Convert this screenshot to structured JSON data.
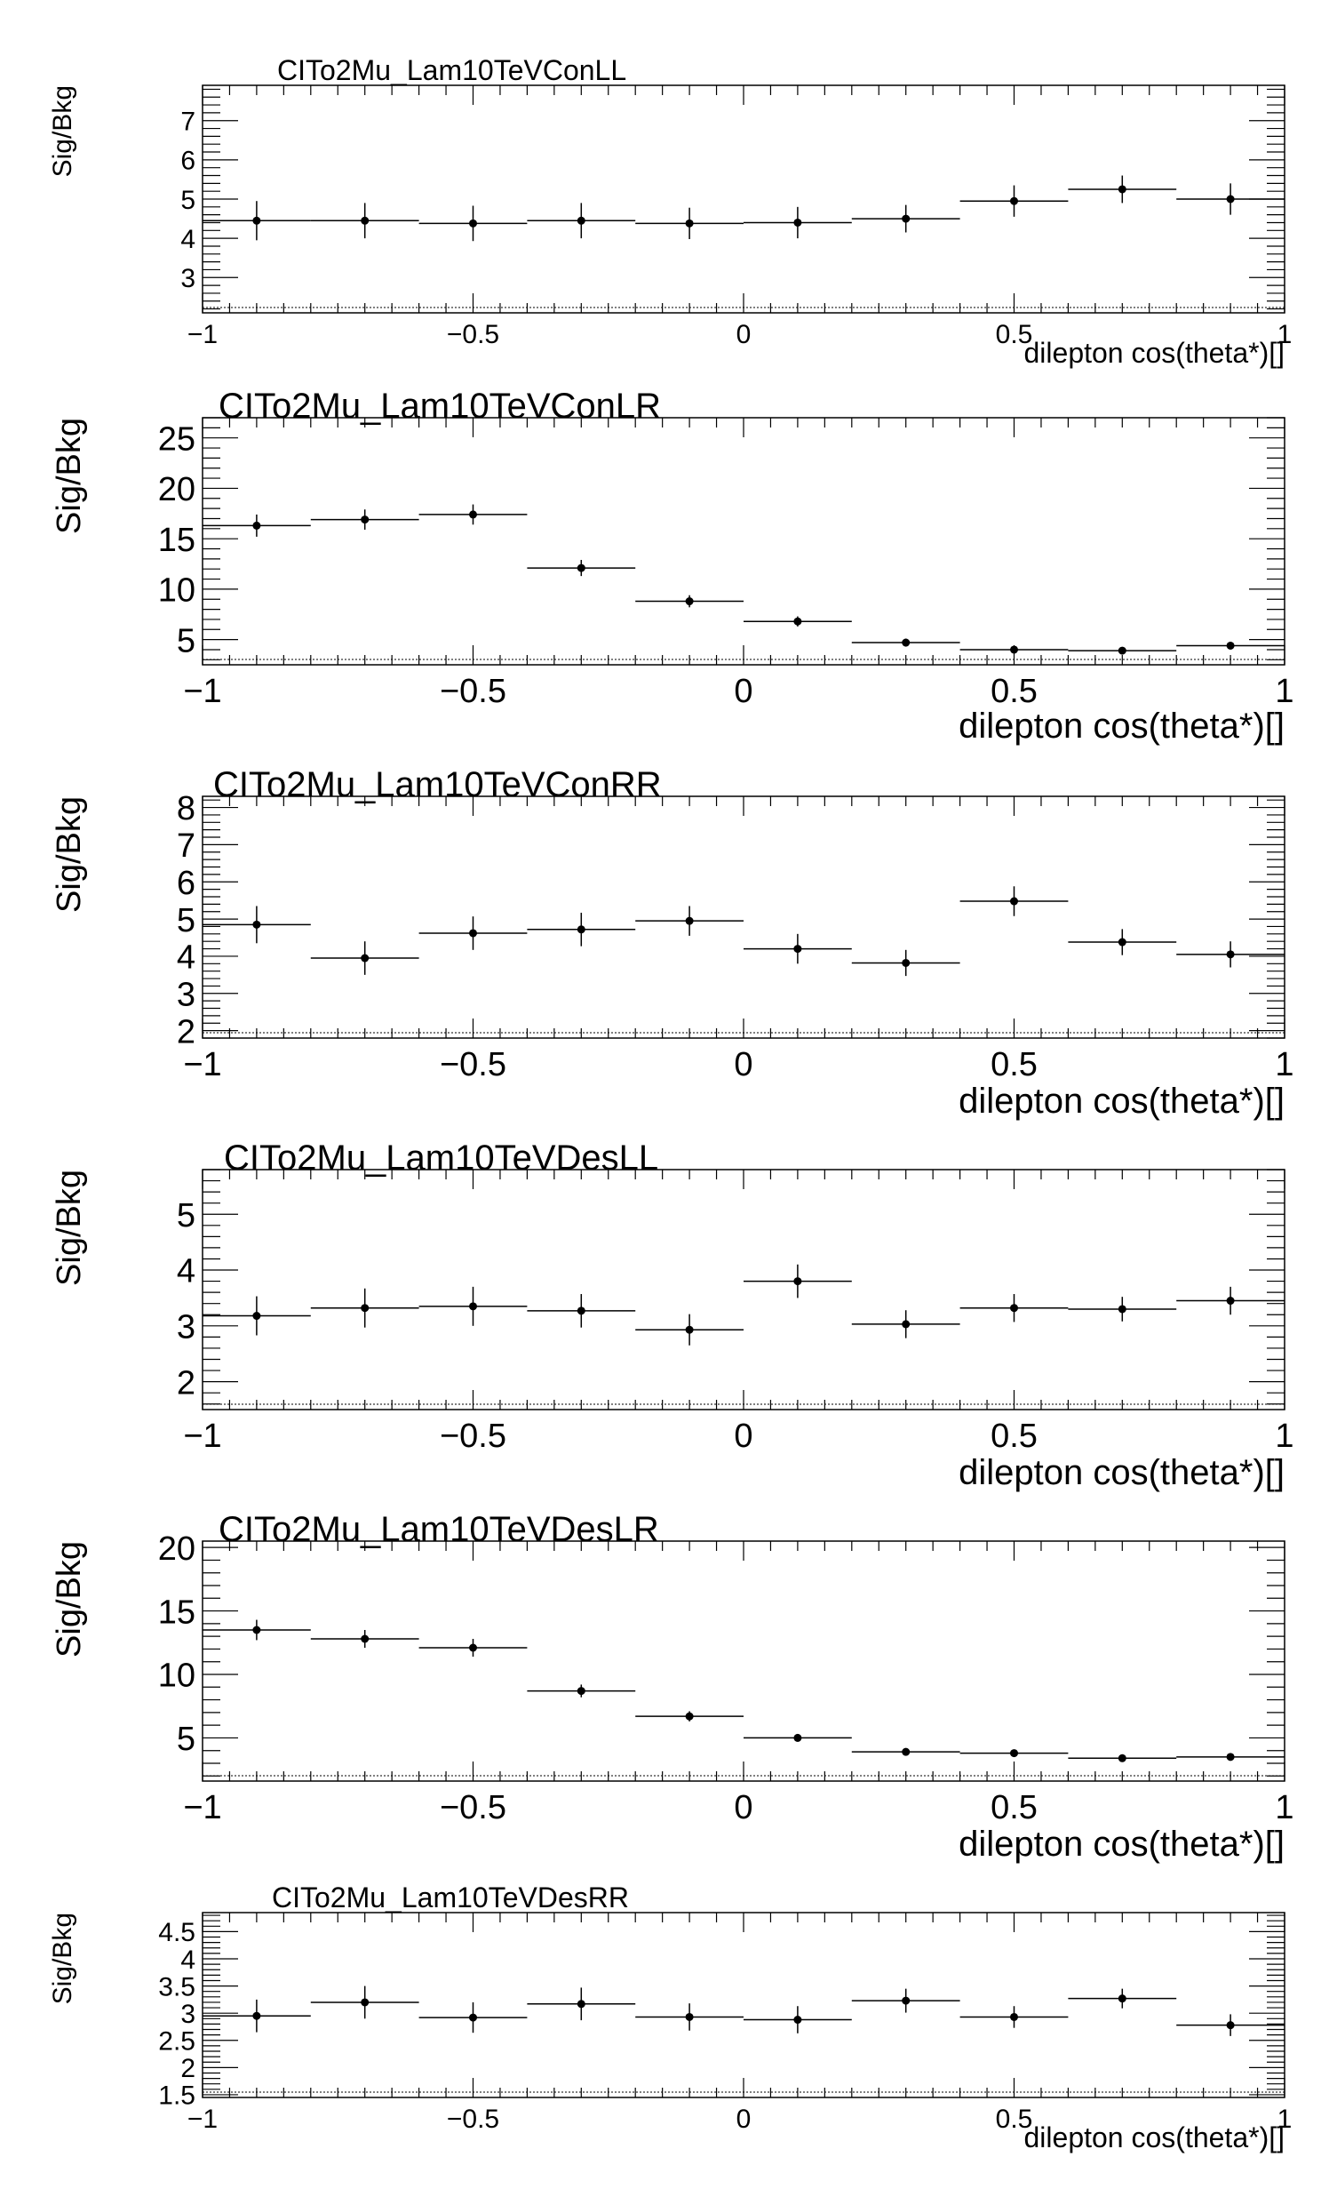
{
  "chart_data": [
    {
      "type": "scatter",
      "title": "CITo2Mu_Lam10TeVConLL",
      "xlabel": "dilepton cos(theta*)[]",
      "ylabel": "Sig/Bkg",
      "xlim": [
        -1,
        1
      ],
      "ylim": [
        2.1,
        7.9
      ],
      "xticks": [
        -1,
        -0.5,
        0,
        0.5,
        1
      ],
      "xtick_labels": [
        "−1",
        "−0.5",
        "0",
        "0.5",
        "1"
      ],
      "yticks": [
        3,
        4,
        5,
        6,
        7
      ],
      "ytick_labels": [
        "3",
        "4",
        "5",
        "6",
        "7"
      ],
      "bin_edges": [
        -1,
        -0.8,
        -0.6,
        -0.4,
        -0.2,
        0,
        0.2,
        0.4,
        0.6,
        0.8,
        1
      ],
      "x": [
        -0.9,
        -0.7,
        -0.5,
        -0.3,
        -0.1,
        0.1,
        0.3,
        0.5,
        0.7,
        0.9
      ],
      "y": [
        4.45,
        4.45,
        4.38,
        4.45,
        4.38,
        4.4,
        4.5,
        4.95,
        5.25,
        5.0
      ],
      "yerr": [
        0.5,
        0.45,
        0.45,
        0.45,
        0.4,
        0.4,
        0.35,
        0.4,
        0.35,
        0.4
      ],
      "grid": false
    },
    {
      "type": "scatter",
      "title": "CITo2Mu_Lam10TeVConLR",
      "xlabel": "dilepton cos(theta*)[]",
      "ylabel": "Sig/Bkg",
      "xlim": [
        -1,
        1
      ],
      "ylim": [
        2.5,
        27.0
      ],
      "xticks": [
        -1,
        -0.5,
        0,
        0.5,
        1
      ],
      "xtick_labels": [
        "−1",
        "−0.5",
        "0",
        "0.5",
        "1"
      ],
      "yticks": [
        5,
        10,
        15,
        20,
        25
      ],
      "ytick_labels": [
        "5",
        "10",
        "15",
        "20",
        "25"
      ],
      "bin_edges": [
        -1,
        -0.8,
        -0.6,
        -0.4,
        -0.2,
        0,
        0.2,
        0.4,
        0.6,
        0.8,
        1
      ],
      "x": [
        -0.9,
        -0.7,
        -0.5,
        -0.3,
        -0.1,
        0.1,
        0.3,
        0.5,
        0.7,
        0.9
      ],
      "y": [
        16.3,
        16.9,
        17.4,
        12.1,
        8.8,
        6.8,
        4.7,
        4.0,
        3.9,
        4.4
      ],
      "yerr": [
        1.1,
        1.0,
        1.0,
        0.8,
        0.6,
        0.5,
        0.4,
        0.35,
        0.35,
        0.35
      ],
      "grid": false
    },
    {
      "type": "scatter",
      "title": "CITo2Mu_Lam10TeVConRR",
      "xlabel": "dilepton cos(theta*)[]",
      "ylabel": "Sig/Bkg",
      "xlim": [
        -1,
        1
      ],
      "ylim": [
        1.8,
        8.3
      ],
      "xticks": [
        -1,
        -0.5,
        0,
        0.5,
        1
      ],
      "xtick_labels": [
        "−1",
        "−0.5",
        "0",
        "0.5",
        "1"
      ],
      "yticks": [
        2,
        3,
        4,
        5,
        6,
        7,
        8
      ],
      "ytick_labels": [
        "2",
        "3",
        "4",
        "5",
        "6",
        "7",
        "8"
      ],
      "bin_edges": [
        -1,
        -0.8,
        -0.6,
        -0.4,
        -0.2,
        0,
        0.2,
        0.4,
        0.6,
        0.8,
        1
      ],
      "x": [
        -0.9,
        -0.7,
        -0.5,
        -0.3,
        -0.1,
        0.1,
        0.3,
        0.5,
        0.7,
        0.9
      ],
      "y": [
        4.85,
        3.95,
        4.62,
        4.72,
        4.95,
        4.2,
        3.82,
        5.48,
        4.38,
        4.05
      ],
      "yerr": [
        0.5,
        0.45,
        0.45,
        0.45,
        0.4,
        0.4,
        0.35,
        0.4,
        0.35,
        0.35
      ],
      "grid": false
    },
    {
      "type": "scatter",
      "title": "CITo2Mu_Lam10TeVDesLL",
      "xlabel": "dilepton cos(theta*)[]",
      "ylabel": "Sig/Bkg",
      "xlim": [
        -1,
        1
      ],
      "ylim": [
        1.5,
        5.8
      ],
      "xticks": [
        -1,
        -0.5,
        0,
        0.5,
        1
      ],
      "xtick_labels": [
        "−1",
        "−0.5",
        "0",
        "0.5",
        "1"
      ],
      "yticks": [
        2,
        3,
        4,
        5
      ],
      "ytick_labels": [
        "2",
        "3",
        "4",
        "5"
      ],
      "bin_edges": [
        -1,
        -0.8,
        -0.6,
        -0.4,
        -0.2,
        0,
        0.2,
        0.4,
        0.6,
        0.8,
        1
      ],
      "x": [
        -0.9,
        -0.7,
        -0.5,
        -0.3,
        -0.1,
        0.1,
        0.3,
        0.5,
        0.7,
        0.9
      ],
      "y": [
        3.18,
        3.32,
        3.35,
        3.27,
        2.93,
        3.8,
        3.03,
        3.32,
        3.3,
        3.45
      ],
      "yerr": [
        0.35,
        0.35,
        0.35,
        0.3,
        0.28,
        0.3,
        0.25,
        0.25,
        0.22,
        0.25
      ],
      "grid": false
    },
    {
      "type": "scatter",
      "title": "CITo2Mu_Lam10TeVDesLR",
      "xlabel": "dilepton cos(theta*)[]",
      "ylabel": "Sig/Bkg",
      "xlim": [
        -1,
        1
      ],
      "ylim": [
        1.6,
        20.5
      ],
      "xticks": [
        -1,
        -0.5,
        0,
        0.5,
        1
      ],
      "xtick_labels": [
        "−1",
        "−0.5",
        "0",
        "0.5",
        "1"
      ],
      "yticks": [
        5,
        10,
        15,
        20
      ],
      "ytick_labels": [
        "5",
        "10",
        "15",
        "20"
      ],
      "bin_edges": [
        -1,
        -0.8,
        -0.6,
        -0.4,
        -0.2,
        0,
        0.2,
        0.4,
        0.6,
        0.8,
        1
      ],
      "x": [
        -0.9,
        -0.7,
        -0.5,
        -0.3,
        -0.1,
        0.1,
        0.3,
        0.5,
        0.7,
        0.9
      ],
      "y": [
        13.5,
        12.8,
        12.1,
        8.7,
        6.7,
        5.0,
        3.9,
        3.8,
        3.4,
        3.5
      ],
      "yerr": [
        0.8,
        0.7,
        0.7,
        0.5,
        0.4,
        0.3,
        0.25,
        0.25,
        0.2,
        0.2
      ],
      "grid": false
    },
    {
      "type": "scatter",
      "title": "CITo2Mu_Lam10TeVDesRR",
      "xlabel": "dilepton cos(theta*)[]",
      "ylabel": "Sig/Bkg",
      "xlim": [
        -1,
        1
      ],
      "ylim": [
        1.45,
        4.85
      ],
      "xticks": [
        -1,
        -0.5,
        0,
        0.5,
        1
      ],
      "xtick_labels": [
        "−1",
        "−0.5",
        "0",
        "0.5",
        "1"
      ],
      "yticks": [
        1.5,
        2,
        2.5,
        3,
        3.5,
        4,
        4.5
      ],
      "ytick_labels": [
        "1.5",
        "2",
        "2.5",
        "3",
        "3.5",
        "4",
        "4.5"
      ],
      "bin_edges": [
        -1,
        -0.8,
        -0.6,
        -0.4,
        -0.2,
        0,
        0.2,
        0.4,
        0.6,
        0.8,
        1
      ],
      "x": [
        -0.9,
        -0.7,
        -0.5,
        -0.3,
        -0.1,
        0.1,
        0.3,
        0.5,
        0.7,
        0.9
      ],
      "y": [
        2.95,
        3.2,
        2.92,
        3.17,
        2.93,
        2.88,
        3.23,
        2.93,
        3.27,
        2.78
      ],
      "yerr": [
        0.3,
        0.3,
        0.28,
        0.3,
        0.25,
        0.25,
        0.22,
        0.2,
        0.18,
        0.2
      ],
      "grid": false
    }
  ]
}
